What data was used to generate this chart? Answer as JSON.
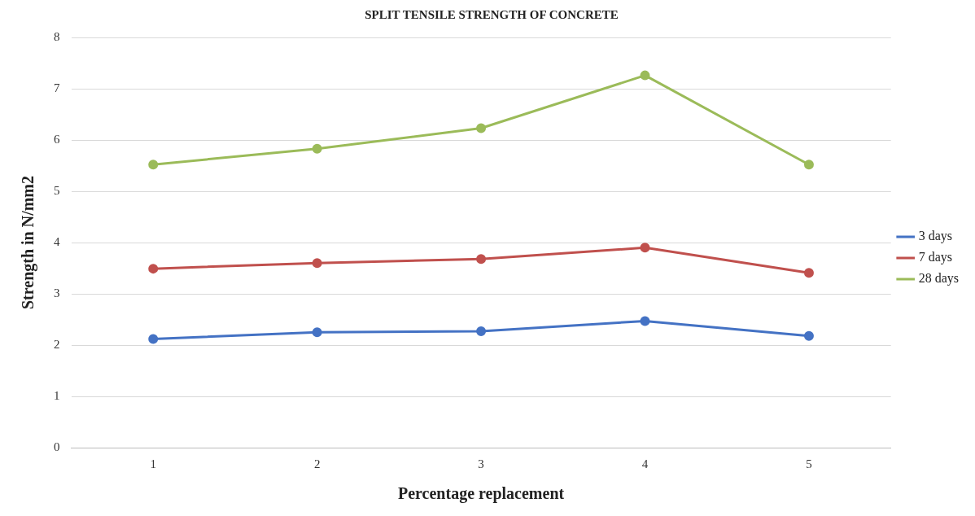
{
  "chart_data": {
    "type": "line",
    "title": "SPLIT TENSILE STRENGTH OF CONCRETE",
    "xlabel": "Percentage replacement",
    "ylabel": "Strength in N/mm2",
    "categories": [
      "1",
      "2",
      "3",
      "4",
      "5"
    ],
    "series": [
      {
        "name": "3 days",
        "color": "#4472c4",
        "values": [
          2.12,
          2.25,
          2.27,
          2.47,
          2.18
        ]
      },
      {
        "name": "7 days",
        "color": "#c0504d",
        "values": [
          3.49,
          3.6,
          3.68,
          3.9,
          3.41
        ]
      },
      {
        "name": "28 days",
        "color": "#9bbb59",
        "values": [
          5.52,
          5.83,
          6.23,
          7.26,
          5.52
        ]
      }
    ],
    "ylim": [
      0,
      8
    ],
    "yticks": [
      0,
      1,
      2,
      3,
      4,
      5,
      6,
      7,
      8
    ],
    "grid": "y",
    "legend": "right",
    "marker": "circle",
    "line_style": "solid"
  }
}
